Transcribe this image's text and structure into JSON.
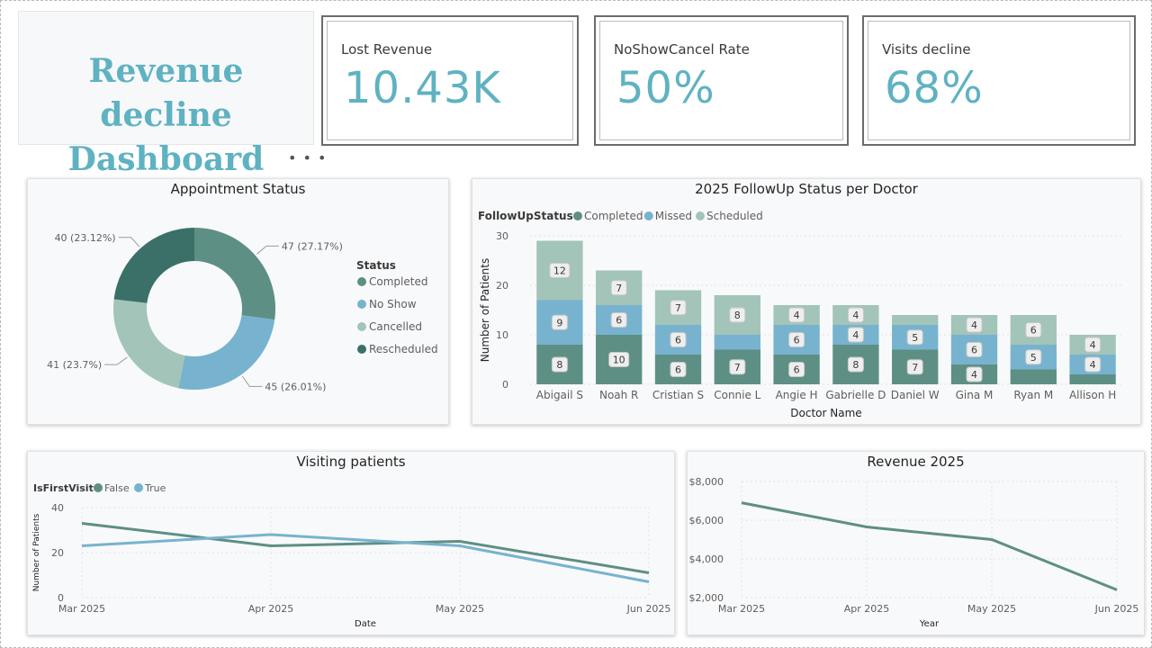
{
  "header": {
    "title_line1": "Revenue decline",
    "title_line2": "Dashboard",
    "more_options": "• • •"
  },
  "kpis": [
    {
      "label": "Lost Revenue",
      "value": "10.43K"
    },
    {
      "label": "NoShowCancel Rate",
      "value": "50%"
    },
    {
      "label": "Visits decline",
      "value": "68%"
    }
  ],
  "colors": {
    "completed": "#5e8f84",
    "missed": "#77b3cf",
    "scheduled": "#a3c4b8",
    "rescheduled": "#3a7067",
    "accent": "#5fb2c1",
    "line_false": "#5e8f84",
    "line_true": "#77b3cf"
  },
  "chart_data": [
    {
      "type": "pie",
      "title": "Appointment Status",
      "legend_title": "Status",
      "legend_position": "right",
      "slices": [
        {
          "name": "Completed",
          "value": 47,
          "label": "47 (27.17%)",
          "color": "#5e8f84"
        },
        {
          "name": "No Show",
          "value": 45,
          "label": "45 (26.01%)",
          "color": "#77b3cf"
        },
        {
          "name": "Cancelled",
          "value": 41,
          "label": "41 (23.7%)",
          "color": "#a3c4b8"
        },
        {
          "name": "Rescheduled",
          "value": 40,
          "label": "40 (23.12%)",
          "color": "#3a7067"
        }
      ]
    },
    {
      "type": "bar",
      "stacked": true,
      "title": "2025 FollowUp Status per Doctor",
      "legend_title": "FollowUpStatus",
      "legend_position": "top-left",
      "xlabel": "Doctor Name",
      "ylabel": "Number of Patients",
      "ylim": [
        0,
        30
      ],
      "yticks": [
        0,
        10,
        20,
        30
      ],
      "categories": [
        "Abigail S",
        "Noah R",
        "Cristian S",
        "Connie L",
        "Angie H",
        "Gabrielle D",
        "Daniel W",
        "Gina M",
        "Ryan M",
        "Allison H"
      ],
      "series": [
        {
          "name": "Completed",
          "color": "#5e8f84",
          "values": [
            8,
            10,
            6,
            7,
            6,
            8,
            7,
            4,
            3,
            2
          ],
          "labels": [
            "8",
            "10",
            "6",
            "7",
            "6",
            "8",
            "7",
            "4",
            "",
            ""
          ]
        },
        {
          "name": "Missed",
          "color": "#77b3cf",
          "values": [
            9,
            6,
            6,
            3,
            6,
            4,
            5,
            6,
            5,
            4
          ],
          "labels": [
            "9",
            "6",
            "6",
            "",
            "6",
            "4",
            "5",
            "6",
            "5",
            "4"
          ]
        },
        {
          "name": "Scheduled",
          "color": "#a3c4b8",
          "values": [
            12,
            7,
            7,
            8,
            4,
            4,
            2,
            4,
            6,
            4
          ],
          "labels": [
            "12",
            "7",
            "7",
            "8",
            "4",
            "4",
            "",
            "4",
            "6",
            "4"
          ]
        }
      ]
    },
    {
      "type": "line",
      "title": "Visiting patients",
      "legend_title": "IsFirstVisit",
      "legend_position": "top-left",
      "xlabel": "Date",
      "ylabel": "Number of Patients",
      "ylim": [
        0,
        40
      ],
      "yticks": [
        0,
        20,
        40
      ],
      "x": [
        "Mar 2025",
        "Apr 2025",
        "May 2025",
        "Jun 2025"
      ],
      "series": [
        {
          "name": "False",
          "color": "#5e8f84",
          "values": [
            33,
            23,
            25,
            11
          ]
        },
        {
          "name": "True",
          "color": "#77b3cf",
          "values": [
            23,
            28,
            23,
            7
          ]
        }
      ]
    },
    {
      "type": "line",
      "title": "Revenue 2025",
      "xlabel": "Year",
      "ylabel": "",
      "ylim": [
        2000,
        8000
      ],
      "yticks": [
        "$2,000",
        "$4,000",
        "$6,000",
        "$8,000"
      ],
      "ytick_values": [
        2000,
        4000,
        6000,
        8000
      ],
      "x": [
        "Mar 2025",
        "Apr 2025",
        "May 2025",
        "Jun 2025"
      ],
      "series": [
        {
          "name": "Revenue",
          "color": "#5e8f84",
          "values": [
            6900,
            5650,
            5000,
            2400
          ]
        }
      ]
    }
  ]
}
